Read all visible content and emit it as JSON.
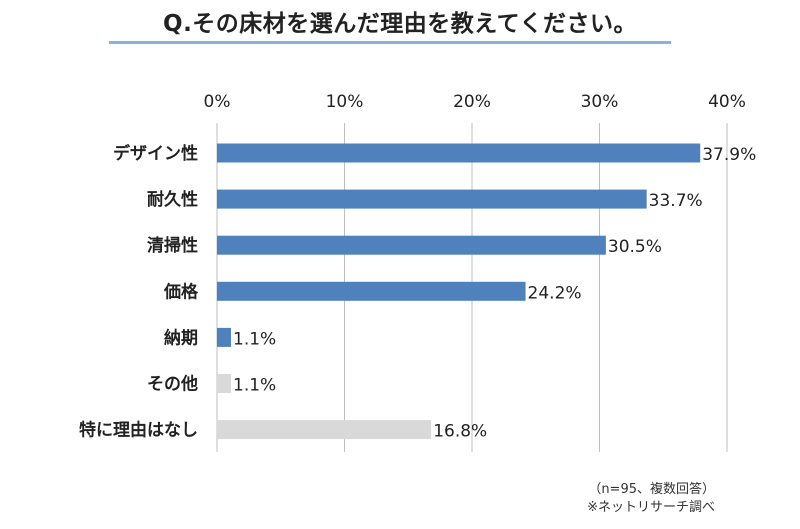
{
  "title": "Q.その床材を選んだ理由を教えてください。",
  "notes": {
    "sample": "（n=95、複数回答）",
    "source": "※ネットリサーチ調べ"
  },
  "colors": {
    "primary_bar": "#4f81bd",
    "secondary_bar": "#d9d9d9",
    "title_rule": "#8eb1dc",
    "grid": "#bfbfbf"
  },
  "chart_data": {
    "type": "bar",
    "orientation": "horizontal",
    "categories": [
      "デザイン性",
      "耐久性",
      "清掃性",
      "価格",
      "納期",
      "その他",
      "特に理由はなし"
    ],
    "values": [
      37.9,
      33.7,
      30.5,
      24.2,
      1.1,
      1.1,
      16.8
    ],
    "value_labels": [
      "37.9%",
      "33.7%",
      "30.5%",
      "24.2%",
      "1.1%",
      "1.1%",
      "16.8%"
    ],
    "bar_colors": [
      "#4f81bd",
      "#4f81bd",
      "#4f81bd",
      "#4f81bd",
      "#4f81bd",
      "#d9d9d9",
      "#d9d9d9"
    ],
    "xlim": [
      0,
      40
    ],
    "xticks": [
      0,
      10,
      20,
      30,
      40
    ],
    "xtick_labels": [
      "0%",
      "10%",
      "20%",
      "30%",
      "40%"
    ],
    "x_axis_position": "top",
    "grid": true
  }
}
